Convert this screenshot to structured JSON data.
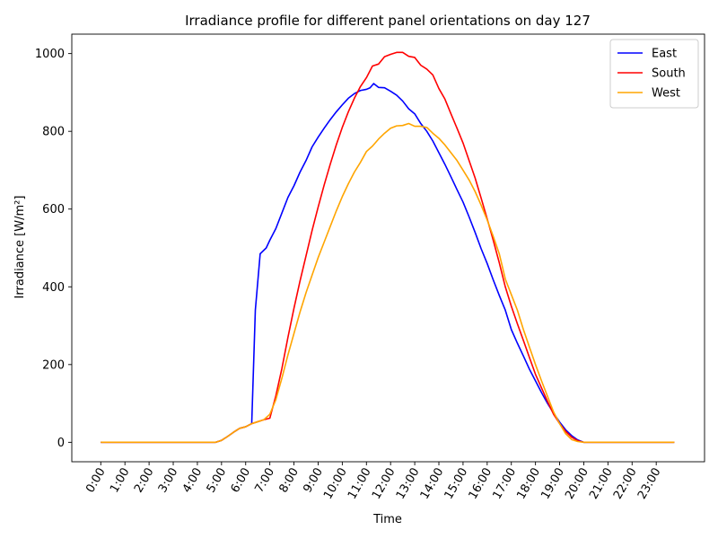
{
  "chart_data": {
    "type": "line",
    "title": "Irradiance profile for different panel orientations on day 127",
    "xlabel": "Time",
    "ylabel": "Irradiance [W/m²]",
    "xlim": [
      -1.2,
      25
    ],
    "ylim": [
      -50,
      1050
    ],
    "grid": false,
    "legend_position": "top-right",
    "x_ticks": [
      0,
      1,
      2,
      3,
      4,
      5,
      6,
      7,
      8,
      9,
      10,
      11,
      12,
      13,
      14,
      15,
      16,
      17,
      18,
      19,
      20,
      21,
      22,
      23
    ],
    "x_tick_labels": [
      "0:00",
      "1:00",
      "2:00",
      "3:00",
      "4:00",
      "5:00",
      "6:00",
      "7:00",
      "8:00",
      "9:00",
      "10:00",
      "11:00",
      "12:00",
      "13:00",
      "14:00",
      "15:00",
      "16:00",
      "17:00",
      "18:00",
      "19:00",
      "20:00",
      "21:00",
      "22:00",
      "23:00"
    ],
    "y_ticks": [
      0,
      200,
      400,
      600,
      800,
      1000
    ],
    "y_tick_labels": [
      "0",
      "200",
      "400",
      "600",
      "800",
      "1000"
    ],
    "series": [
      {
        "name": "East",
        "color": "#0000ff",
        "points": [
          [
            0,
            0
          ],
          [
            4.75,
            0
          ],
          [
            5,
            5
          ],
          [
            5.25,
            15
          ],
          [
            5.5,
            26
          ],
          [
            5.75,
            36
          ],
          [
            6,
            40
          ],
          [
            6.25,
            48
          ],
          [
            6.4,
            340
          ],
          [
            6.6,
            485
          ],
          [
            6.85,
            500
          ],
          [
            7,
            520
          ],
          [
            7.25,
            550
          ],
          [
            7.5,
            590
          ],
          [
            7.75,
            630
          ],
          [
            8,
            660
          ],
          [
            8.25,
            695
          ],
          [
            8.5,
            725
          ],
          [
            8.75,
            760
          ],
          [
            9,
            785
          ],
          [
            9.25,
            808
          ],
          [
            9.5,
            830
          ],
          [
            9.75,
            850
          ],
          [
            10,
            868
          ],
          [
            10.25,
            885
          ],
          [
            10.5,
            897
          ],
          [
            10.75,
            905
          ],
          [
            11,
            908
          ],
          [
            11.15,
            912
          ],
          [
            11.3,
            923
          ],
          [
            11.5,
            913
          ],
          [
            11.75,
            912
          ],
          [
            12,
            903
          ],
          [
            12.25,
            893
          ],
          [
            12.5,
            878
          ],
          [
            12.75,
            858
          ],
          [
            13,
            845
          ],
          [
            13.25,
            820
          ],
          [
            13.5,
            800
          ],
          [
            13.75,
            775
          ],
          [
            14,
            745
          ],
          [
            14.25,
            715
          ],
          [
            14.5,
            683
          ],
          [
            14.75,
            650
          ],
          [
            15,
            618
          ],
          [
            15.25,
            580
          ],
          [
            15.5,
            540
          ],
          [
            15.75,
            498
          ],
          [
            16,
            460
          ],
          [
            16.25,
            418
          ],
          [
            16.5,
            378
          ],
          [
            16.75,
            340
          ],
          [
            17,
            290
          ],
          [
            17.25,
            255
          ],
          [
            17.5,
            222
          ],
          [
            17.75,
            188
          ],
          [
            18,
            158
          ],
          [
            18.25,
            128
          ],
          [
            18.5,
            100
          ],
          [
            18.75,
            75
          ],
          [
            19,
            52
          ],
          [
            19.25,
            32
          ],
          [
            19.5,
            17
          ],
          [
            19.75,
            6
          ],
          [
            20,
            0
          ],
          [
            23.75,
            0
          ]
        ]
      },
      {
        "name": "South",
        "color": "#ff0000",
        "points": [
          [
            0,
            0
          ],
          [
            4.75,
            0
          ],
          [
            5,
            5
          ],
          [
            5.25,
            15
          ],
          [
            5.5,
            26
          ],
          [
            5.75,
            36
          ],
          [
            6,
            40
          ],
          [
            6.25,
            48
          ],
          [
            6.5,
            53
          ],
          [
            6.75,
            58
          ],
          [
            7,
            62
          ],
          [
            7.25,
            120
          ],
          [
            7.5,
            190
          ],
          [
            7.75,
            270
          ],
          [
            8,
            345
          ],
          [
            8.25,
            415
          ],
          [
            8.5,
            480
          ],
          [
            8.75,
            545
          ],
          [
            9,
            605
          ],
          [
            9.25,
            662
          ],
          [
            9.5,
            715
          ],
          [
            9.75,
            765
          ],
          [
            10,
            810
          ],
          [
            10.25,
            850
          ],
          [
            10.5,
            885
          ],
          [
            10.75,
            915
          ],
          [
            11,
            938
          ],
          [
            11.25,
            968
          ],
          [
            11.5,
            973
          ],
          [
            11.75,
            992
          ],
          [
            12,
            998
          ],
          [
            12.25,
            1003
          ],
          [
            12.5,
            1003
          ],
          [
            12.75,
            993
          ],
          [
            13,
            990
          ],
          [
            13.25,
            970
          ],
          [
            13.5,
            960
          ],
          [
            13.75,
            945
          ],
          [
            14,
            910
          ],
          [
            14.25,
            883
          ],
          [
            14.5,
            845
          ],
          [
            14.75,
            808
          ],
          [
            15,
            770
          ],
          [
            15.25,
            725
          ],
          [
            15.5,
            680
          ],
          [
            15.75,
            628
          ],
          [
            16,
            575
          ],
          [
            16.25,
            520
          ],
          [
            16.5,
            462
          ],
          [
            16.75,
            400
          ],
          [
            17,
            350
          ],
          [
            17.25,
            305
          ],
          [
            17.5,
            262
          ],
          [
            17.75,
            218
          ],
          [
            18,
            175
          ],
          [
            18.25,
            140
          ],
          [
            18.5,
            105
          ],
          [
            18.75,
            72
          ],
          [
            19,
            48
          ],
          [
            19.25,
            28
          ],
          [
            19.5,
            13
          ],
          [
            19.75,
            4
          ],
          [
            20,
            0
          ],
          [
            23.75,
            0
          ]
        ]
      },
      {
        "name": "West",
        "color": "#ffa500",
        "points": [
          [
            0,
            0
          ],
          [
            4.75,
            0
          ],
          [
            5,
            5
          ],
          [
            5.25,
            15
          ],
          [
            5.5,
            26
          ],
          [
            5.75,
            36
          ],
          [
            6,
            40
          ],
          [
            6.25,
            48
          ],
          [
            6.5,
            53
          ],
          [
            6.75,
            58
          ],
          [
            7,
            72
          ],
          [
            7.25,
            110
          ],
          [
            7.5,
            165
          ],
          [
            7.75,
            225
          ],
          [
            8,
            280
          ],
          [
            8.25,
            335
          ],
          [
            8.5,
            385
          ],
          [
            8.75,
            430
          ],
          [
            9,
            475
          ],
          [
            9.25,
            515
          ],
          [
            9.5,
            555
          ],
          [
            9.75,
            595
          ],
          [
            10,
            632
          ],
          [
            10.25,
            665
          ],
          [
            10.5,
            695
          ],
          [
            10.75,
            720
          ],
          [
            11,
            748
          ],
          [
            11.25,
            762
          ],
          [
            11.5,
            780
          ],
          [
            11.75,
            795
          ],
          [
            12,
            808
          ],
          [
            12.25,
            814
          ],
          [
            12.5,
            815
          ],
          [
            12.75,
            820
          ],
          [
            13,
            813
          ],
          [
            13.25,
            813
          ],
          [
            13.5,
            810
          ],
          [
            13.75,
            795
          ],
          [
            14,
            782
          ],
          [
            14.25,
            765
          ],
          [
            14.5,
            745
          ],
          [
            14.75,
            725
          ],
          [
            15,
            700
          ],
          [
            15.25,
            675
          ],
          [
            15.5,
            645
          ],
          [
            15.75,
            610
          ],
          [
            16,
            572
          ],
          [
            16.25,
            530
          ],
          [
            16.5,
            485
          ],
          [
            16.75,
            420
          ],
          [
            17,
            380
          ],
          [
            17.25,
            340
          ],
          [
            17.5,
            290
          ],
          [
            17.75,
            245
          ],
          [
            18,
            200
          ],
          [
            18.25,
            158
          ],
          [
            18.5,
            118
          ],
          [
            18.75,
            78
          ],
          [
            19,
            48
          ],
          [
            19.25,
            22
          ],
          [
            19.5,
            7
          ],
          [
            19.75,
            2
          ],
          [
            20,
            0
          ],
          [
            23.75,
            0
          ]
        ]
      }
    ]
  }
}
